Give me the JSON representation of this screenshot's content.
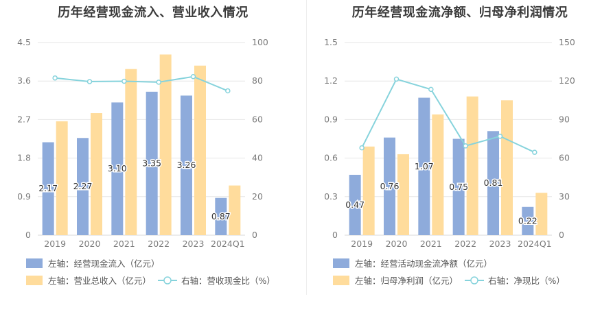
{
  "charts": [
    {
      "title": "历年经营现金流入、营业收入情况",
      "chart_data": {
        "type": "bar",
        "categories": [
          "2019",
          "2020",
          "2021",
          "2022",
          "2023",
          "2024Q1"
        ],
        "series": [
          {
            "name": "左轴：经营现金流入（亿元）",
            "axis": "left",
            "type": "bar",
            "color": "#8eabdb",
            "values": [
              2.17,
              2.27,
              3.1,
              3.35,
              3.26,
              0.87
            ],
            "labels": [
              "2.17",
              "2.27",
              "3.10",
              "3.35",
              "3.26",
              "0.87"
            ]
          },
          {
            "name": "左轴：营业总收入（亿元）",
            "axis": "left",
            "type": "bar",
            "color": "#ffdc9c",
            "values": [
              2.66,
              2.85,
              3.88,
              4.22,
              3.96,
              1.16
            ]
          },
          {
            "name": "右轴：营收现金比（%）",
            "axis": "right",
            "type": "line",
            "color": "#86d3dc",
            "values": [
              81.6,
              79.7,
              79.9,
              79.4,
              82.3,
              74.9
            ]
          }
        ],
        "left_axis": {
          "ylim": [
            0,
            4.5
          ],
          "ticks": [
            "0",
            "0.9",
            "1.8",
            "2.7",
            "3.6",
            "4.5"
          ]
        },
        "right_axis": {
          "ylim": [
            0,
            100
          ],
          "ticks": [
            "0",
            "20",
            "40",
            "60",
            "80",
            "100"
          ]
        },
        "grid": true,
        "legend_placement": "bottom"
      }
    },
    {
      "title": "历年经营现金流净额、归母净利润情况",
      "chart_data": {
        "type": "bar",
        "categories": [
          "2019",
          "2020",
          "2021",
          "2022",
          "2023",
          "2024Q1"
        ],
        "series": [
          {
            "name": "左轴：经营活动现金流净额（亿元）",
            "axis": "left",
            "type": "bar",
            "color": "#8eabdb",
            "values": [
              0.47,
              0.76,
              1.07,
              0.75,
              0.81,
              0.22
            ],
            "labels": [
              "0.47",
              "0.76",
              "1.07",
              "0.75",
              "0.81",
              "0.22"
            ]
          },
          {
            "name": "左轴：归母净利润（亿元）",
            "axis": "left",
            "type": "bar",
            "color": "#ffdc9c",
            "values": [
              0.69,
              0.63,
              0.94,
              1.08,
              1.05,
              0.33
            ]
          },
          {
            "name": "右轴：净现比（%）",
            "axis": "right",
            "type": "line",
            "color": "#86d3dc",
            "values": [
              68,
              121.5,
              113.5,
              69.5,
              77,
              64.5
            ]
          }
        ],
        "left_axis": {
          "ylim": [
            0,
            1.5
          ],
          "ticks": [
            "0",
            "0.3",
            "0.6",
            "0.9",
            "1.2",
            "1.5"
          ]
        },
        "right_axis": {
          "ylim": [
            0,
            150
          ],
          "ticks": [
            "0",
            "30",
            "60",
            "90",
            "120",
            "150"
          ]
        },
        "grid": true,
        "legend_placement": "bottom"
      }
    }
  ]
}
